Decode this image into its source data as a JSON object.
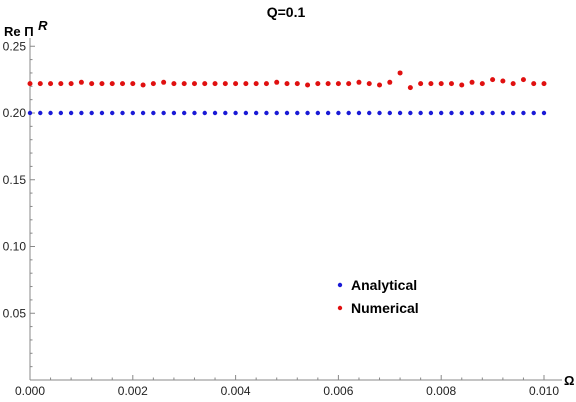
{
  "chart_data": {
    "type": "scatter",
    "title": "Q=0.1",
    "xlabel": "Ω",
    "ylabel_main": "Re Π",
    "ylabel_sup": "R",
    "xlim": [
      0,
      0.0101
    ],
    "ylim": [
      0,
      0.25
    ],
    "x_ticks": [
      "0.000",
      "0.002",
      "0.004",
      "0.006",
      "0.008",
      "0.010"
    ],
    "y_ticks": [
      "0.05",
      "0.10",
      "0.15",
      "0.20",
      "0.25"
    ],
    "legend_position": "lower-middle",
    "grid": false,
    "x": [
      0.0,
      0.0002,
      0.0004,
      0.0006,
      0.0008,
      0.001,
      0.0012,
      0.0014,
      0.0016,
      0.0018,
      0.002,
      0.0022,
      0.0024,
      0.0026,
      0.0028,
      0.003,
      0.0032,
      0.0034,
      0.0036,
      0.0038,
      0.004,
      0.0042,
      0.0044,
      0.0046,
      0.0048,
      0.005,
      0.0052,
      0.0054,
      0.0056,
      0.0058,
      0.006,
      0.0062,
      0.0064,
      0.0066,
      0.0068,
      0.007,
      0.0072,
      0.0074,
      0.0076,
      0.0078,
      0.008,
      0.0082,
      0.0084,
      0.0086,
      0.0088,
      0.009,
      0.0092,
      0.0094,
      0.0096,
      0.0098,
      0.01
    ],
    "series": [
      {
        "name": "Analytical",
        "color": "#1a1ad6",
        "values": [
          0.2,
          0.2,
          0.2,
          0.2,
          0.2,
          0.2,
          0.2,
          0.2,
          0.2,
          0.2,
          0.2,
          0.2,
          0.2,
          0.2,
          0.2,
          0.2,
          0.2,
          0.2,
          0.2,
          0.2,
          0.2,
          0.2,
          0.2,
          0.2,
          0.2,
          0.2,
          0.2,
          0.2,
          0.2,
          0.2,
          0.2,
          0.2,
          0.2,
          0.2,
          0.2,
          0.2,
          0.2,
          0.2,
          0.2,
          0.2,
          0.2,
          0.2,
          0.2,
          0.2,
          0.2,
          0.2,
          0.2,
          0.2,
          0.2,
          0.2,
          0.2
        ]
      },
      {
        "name": "Numerical",
        "color": "#e01010",
        "values": [
          0.222,
          0.222,
          0.222,
          0.222,
          0.222,
          0.223,
          0.222,
          0.222,
          0.222,
          0.222,
          0.222,
          0.221,
          0.222,
          0.223,
          0.222,
          0.222,
          0.222,
          0.222,
          0.222,
          0.222,
          0.222,
          0.222,
          0.222,
          0.222,
          0.223,
          0.222,
          0.222,
          0.221,
          0.222,
          0.222,
          0.222,
          0.222,
          0.223,
          0.222,
          0.221,
          0.223,
          0.23,
          0.219,
          0.222,
          0.222,
          0.222,
          0.222,
          0.221,
          0.223,
          0.222,
          0.225,
          0.224,
          0.222,
          0.225,
          0.222,
          0.222
        ]
      }
    ]
  }
}
